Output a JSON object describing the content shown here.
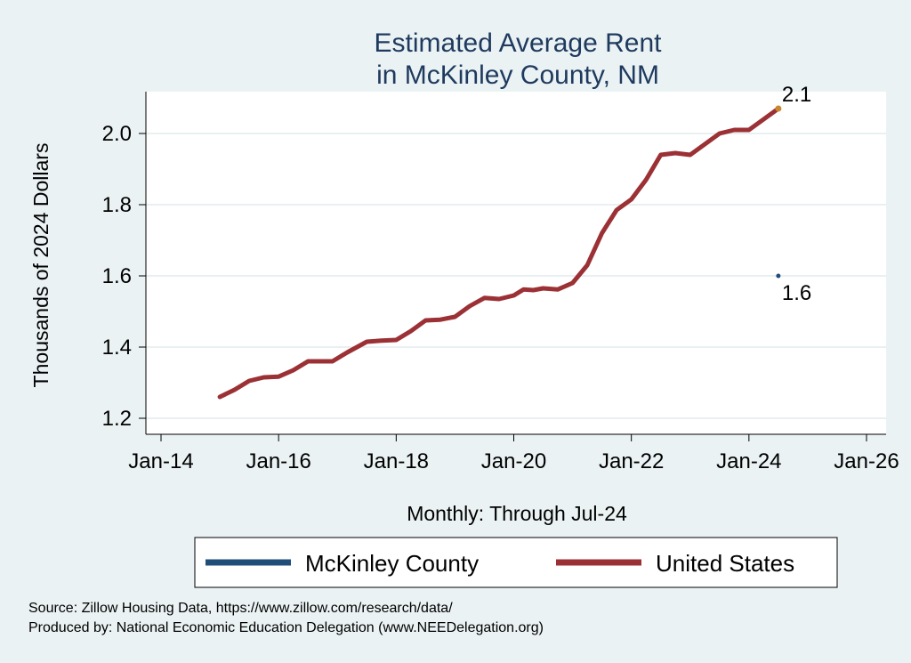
{
  "chart_data": {
    "type": "line",
    "title": [
      "Estimated Average Rent",
      "in McKinley County, NM"
    ],
    "xlabel": "Monthly: Through Jul-24",
    "ylabel": "Thousands of 2024 Dollars",
    "xlim": [
      "2014-01",
      "2026-01"
    ],
    "ylim": [
      1.2,
      2.1
    ],
    "x_ticks": [
      "Jan-14",
      "Jan-16",
      "Jan-18",
      "Jan-20",
      "Jan-22",
      "Jan-24",
      "Jan-26"
    ],
    "y_ticks": [
      1.2,
      1.4,
      1.6,
      1.8,
      2.0
    ],
    "y_tick_labels": [
      "1.2",
      "1.4",
      "1.6",
      "1.8",
      "2.0"
    ],
    "grid": true,
    "legend": "bottom",
    "series": [
      {
        "name": "McKinley County",
        "color": "#1f4e79",
        "points": [
          [
            "2024-07",
            1.6
          ]
        ],
        "end_label": "1.6"
      },
      {
        "name": "United States",
        "color": "#9b3135",
        "points": [
          [
            "2015-01",
            1.26
          ],
          [
            "2015-04",
            1.28
          ],
          [
            "2015-07",
            1.305
          ],
          [
            "2015-10",
            1.315
          ],
          [
            "2016-01",
            1.317
          ],
          [
            "2016-04",
            1.335
          ],
          [
            "2016-07",
            1.36
          ],
          [
            "2016-10",
            1.36
          ],
          [
            "2016-12",
            1.36
          ],
          [
            "2017-03",
            1.385
          ],
          [
            "2017-07",
            1.415
          ],
          [
            "2017-10",
            1.418
          ],
          [
            "2018-01",
            1.42
          ],
          [
            "2018-04",
            1.445
          ],
          [
            "2018-07",
            1.475
          ],
          [
            "2018-10",
            1.477
          ],
          [
            "2019-01",
            1.485
          ],
          [
            "2019-04",
            1.515
          ],
          [
            "2019-07",
            1.538
          ],
          [
            "2019-10",
            1.535
          ],
          [
            "2020-01",
            1.545
          ],
          [
            "2020-03",
            1.562
          ],
          [
            "2020-05",
            1.56
          ],
          [
            "2020-07",
            1.565
          ],
          [
            "2020-10",
            1.562
          ],
          [
            "2021-01",
            1.58
          ],
          [
            "2021-04",
            1.63
          ],
          [
            "2021-07",
            1.72
          ],
          [
            "2021-10",
            1.785
          ],
          [
            "2022-01",
            1.815
          ],
          [
            "2022-04",
            1.87
          ],
          [
            "2022-07",
            1.94
          ],
          [
            "2022-10",
            1.945
          ],
          [
            "2023-01",
            1.94
          ],
          [
            "2023-04",
            1.97
          ],
          [
            "2023-07",
            2.0
          ],
          [
            "2023-10",
            2.01
          ],
          [
            "2024-01",
            2.01
          ],
          [
            "2024-04",
            2.04
          ],
          [
            "2024-07",
            2.07
          ]
        ],
        "end_label": "2.1"
      }
    ],
    "end_marker_color": "#c9872e"
  },
  "footer": {
    "source": "Source: Zillow Housing Data, https://www.zillow.com/research/data/",
    "produced": "Produced by: National Economic Education Delegation (www.NEEDelegation.org)"
  }
}
